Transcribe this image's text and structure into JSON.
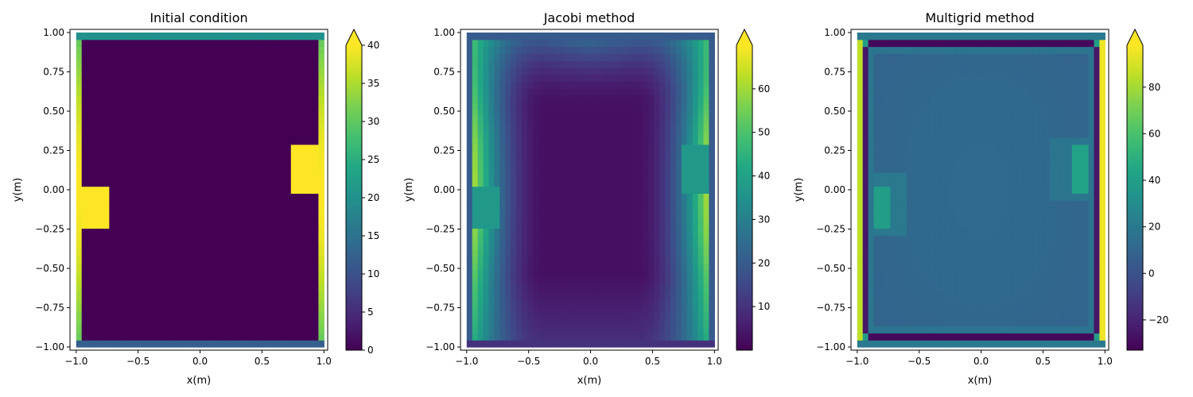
{
  "chart_data": [
    {
      "type": "heatmap",
      "title": "Initial condition",
      "xlabel": "x(m)",
      "ylabel": "y(m)",
      "xlim": [
        -1.0,
        1.0
      ],
      "ylim": [
        -1.0,
        1.0
      ],
      "xticks": [
        "−1.0",
        "−0.5",
        "0.0",
        "0.5",
        "1.0"
      ],
      "yticks": [
        "−1.00",
        "−0.75",
        "−0.50",
        "−0.25",
        "0.00",
        "0.25",
        "0.50",
        "0.75",
        "1.00"
      ],
      "colorbar": {
        "min": 0,
        "max": 40,
        "extend": "max",
        "ticks": [
          "0",
          "5",
          "10",
          "15",
          "20",
          "25",
          "30",
          "35",
          "40"
        ],
        "tick_values": [
          0,
          5,
          10,
          15,
          20,
          25,
          30,
          35,
          40
        ]
      },
      "colormap": "viridis",
      "field": "initial"
    },
    {
      "type": "heatmap",
      "title": "Jacobi method",
      "xlabel": "x(m)",
      "ylabel": "y(m)",
      "xlim": [
        -1.0,
        1.0
      ],
      "ylim": [
        -1.0,
        1.0
      ],
      "xticks": [
        "−1.0",
        "−0.5",
        "0.0",
        "0.5",
        "1.0"
      ],
      "yticks": [
        "−1.00",
        "−0.75",
        "−0.50",
        "−0.25",
        "0.00",
        "0.25",
        "0.50",
        "0.75",
        "1.00"
      ],
      "colorbar": {
        "min": 0,
        "max": 70,
        "extend": "max",
        "ticks": [
          "10",
          "20",
          "30",
          "40",
          "50",
          "60"
        ],
        "tick_values": [
          10,
          20,
          30,
          40,
          50,
          60
        ]
      },
      "colormap": "viridis",
      "field": "jacobi"
    },
    {
      "type": "heatmap",
      "title": "Multigrid method",
      "xlabel": "x(m)",
      "ylabel": "y(m)",
      "xlim": [
        -1.0,
        1.0
      ],
      "ylim": [
        -1.0,
        1.0
      ],
      "xticks": [
        "−1.0",
        "−0.5",
        "0.0",
        "0.5",
        "1.0"
      ],
      "yticks": [
        "−1.00",
        "−0.75",
        "−0.50",
        "−0.25",
        "0.00",
        "0.25",
        "0.50",
        "0.75",
        "1.00"
      ],
      "colorbar": {
        "min": -33,
        "max": 98,
        "extend": "max",
        "ticks": [
          "−20",
          "0",
          "20",
          "40",
          "60",
          "80"
        ],
        "tick_values": [
          -20,
          0,
          20,
          40,
          60,
          80
        ]
      },
      "colormap": "viridis",
      "field": "multigrid"
    }
  ]
}
